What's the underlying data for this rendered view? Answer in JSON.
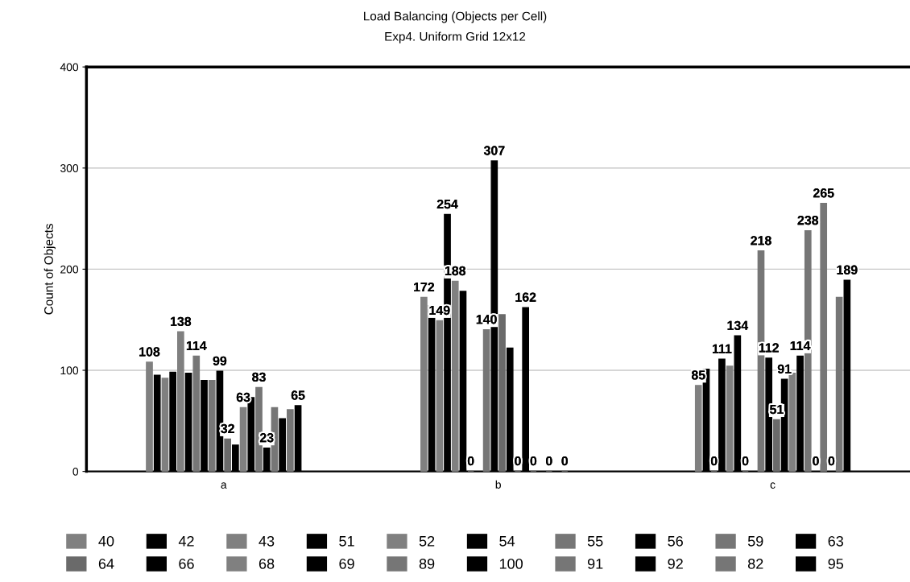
{
  "chart_data": {
    "type": "bar",
    "title": "Load Balancing (Objects per Cell)",
    "subtitle": "Exp4. Uniform Grid 12x12",
    "ylabel": "Count of Objects",
    "categories": [
      "a",
      "b",
      "c"
    ],
    "ylim": [
      0,
      400
    ],
    "yticks": [
      0,
      100,
      200,
      300,
      400
    ],
    "grid": "y",
    "legend": "bottom",
    "series": [
      {
        "name": "40",
        "color": "#808080",
        "values": [
          108,
          172,
          85
        ],
        "value_labels": [
          "108",
          "172",
          "85"
        ]
      },
      {
        "name": "42",
        "color": "#000000",
        "values": [
          95,
          164,
          101
        ],
        "value_labels": [
          null,
          null,
          null
        ]
      },
      {
        "name": "43",
        "color": "#808080",
        "values": [
          92,
          149,
          0
        ],
        "value_labels": [
          null,
          "149",
          "0"
        ]
      },
      {
        "name": "51",
        "color": "#000000",
        "values": [
          98,
          254,
          111
        ],
        "value_labels": [
          null,
          "254",
          "111"
        ]
      },
      {
        "name": "52",
        "color": "#808080",
        "values": [
          138,
          188,
          104
        ],
        "value_labels": [
          "138",
          "188",
          null
        ]
      },
      {
        "name": "54",
        "color": "#000000",
        "values": [
          97,
          178,
          134
        ],
        "value_labels": [
          null,
          null,
          "134"
        ]
      },
      {
        "name": "55",
        "color": "#767676",
        "values": [
          114,
          0,
          0
        ],
        "value_labels": [
          "114",
          "0",
          "0"
        ]
      },
      {
        "name": "56",
        "color": "#000000",
        "values": [
          90,
          0,
          0
        ],
        "value_labels": [
          null,
          null,
          null
        ]
      },
      {
        "name": "59",
        "color": "#767676",
        "values": [
          90,
          140,
          218
        ],
        "value_labels": [
          null,
          "140",
          "218"
        ]
      },
      {
        "name": "63",
        "color": "#000000",
        "values": [
          99,
          307,
          112
        ],
        "value_labels": [
          "99",
          "307",
          "112"
        ]
      },
      {
        "name": "64",
        "color": "#6a6a6a",
        "values": [
          32,
          155,
          51
        ],
        "value_labels": [
          "32",
          null,
          "51"
        ]
      },
      {
        "name": "66",
        "color": "#000000",
        "values": [
          26,
          122,
          91
        ],
        "value_labels": [
          null,
          null,
          "91"
        ]
      },
      {
        "name": "68",
        "color": "#808080",
        "values": [
          63,
          0,
          97
        ],
        "value_labels": [
          "63",
          "0",
          null
        ]
      },
      {
        "name": "69",
        "color": "#000000",
        "values": [
          73,
          162,
          114
        ],
        "value_labels": [
          null,
          "162",
          "114"
        ]
      },
      {
        "name": "89",
        "color": "#767676",
        "values": [
          83,
          0,
          238
        ],
        "value_labels": [
          "83",
          "0",
          "238"
        ]
      },
      {
        "name": "100",
        "color": "#000000",
        "values": [
          23,
          0,
          0
        ],
        "value_labels": [
          "23",
          null,
          "0"
        ]
      },
      {
        "name": "91",
        "color": "#767676",
        "values": [
          63,
          0,
          265
        ],
        "value_labels": [
          null,
          "0",
          "265"
        ]
      },
      {
        "name": "92",
        "color": "#000000",
        "values": [
          52,
          0,
          0
        ],
        "value_labels": [
          null,
          null,
          "0"
        ]
      },
      {
        "name": "82",
        "color": "#767676",
        "values": [
          61,
          0,
          172
        ],
        "value_labels": [
          null,
          "0",
          null
        ]
      },
      {
        "name": "95",
        "color": "#000000",
        "values": [
          65,
          0,
          189
        ],
        "value_labels": [
          "65",
          null,
          "189"
        ]
      }
    ]
  }
}
